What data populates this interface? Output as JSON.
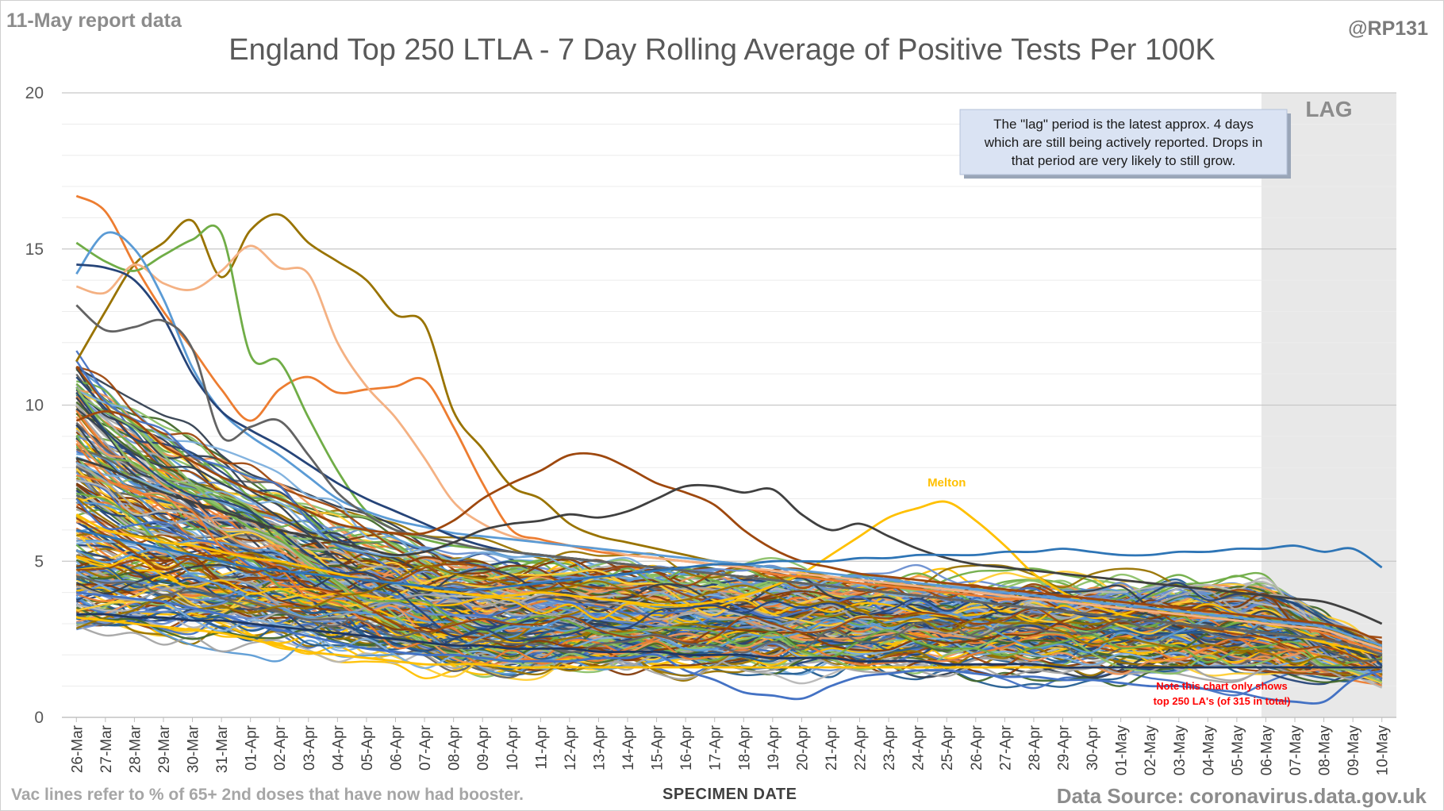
{
  "header": {
    "report_note": "11-May report data",
    "handle": "@RP131",
    "title": "England Top 250 LTLA - 7 Day Rolling Average of Positive Tests Per 100K"
  },
  "footer": {
    "vac_note": "Vac lines refer to % of 65+ 2nd doses that have now had booster.",
    "source": "Data Source: coronavirus.data.gov.uk"
  },
  "chart_data": {
    "type": "line",
    "title": "England Top 250 LTLA - 7 Day Rolling Average of Positive Tests Per 100K",
    "xlabel": "SPECIMEN DATE",
    "ylabel": "",
    "ylim": [
      0,
      20
    ],
    "yticks": [
      "0",
      "5",
      "10",
      "15",
      "20"
    ],
    "grid": true,
    "legend": "none",
    "categories": [
      "26-Mar",
      "27-Mar",
      "28-Mar",
      "29-Mar",
      "30-Mar",
      "31-Mar",
      "01-Apr",
      "02-Apr",
      "03-Apr",
      "04-Apr",
      "05-Apr",
      "06-Apr",
      "07-Apr",
      "08-Apr",
      "09-Apr",
      "10-Apr",
      "11-Apr",
      "12-Apr",
      "13-Apr",
      "14-Apr",
      "15-Apr",
      "16-Apr",
      "17-Apr",
      "18-Apr",
      "19-Apr",
      "20-Apr",
      "21-Apr",
      "22-Apr",
      "23-Apr",
      "24-Apr",
      "25-Apr",
      "26-Apr",
      "27-Apr",
      "28-Apr",
      "29-Apr",
      "30-Apr",
      "01-May",
      "02-May",
      "03-May",
      "04-May",
      "05-May",
      "06-May",
      "07-May",
      "08-May",
      "09-May",
      "10-May"
    ],
    "lag_region": {
      "label": "LAG",
      "start": "06-May",
      "end": "10-May",
      "color": "#e8e8e8"
    },
    "annotations": {
      "lag_note": "The \"lag\" period is the latest approx. 4 days which are still being actively reported. Drops in that period are very likely to still grow.",
      "melton_label": "Melton",
      "coverage_note_1": "Note this chart only shows",
      "coverage_note_2": "top 250 LA's (of 315 in total)"
    },
    "palette": [
      "#4472c4",
      "#ed7d31",
      "#a5a5a5",
      "#ffc000",
      "#5b9bd5",
      "#70ad47",
      "#264478",
      "#9e480e",
      "#636363",
      "#997300",
      "#255e91",
      "#43682b",
      "#698ed0",
      "#f1975a",
      "#b7b7b7",
      "#ffcd33",
      "#7cafdd",
      "#8cc168",
      "#333f50",
      "#843c0c"
    ],
    "series": [
      {
        "name": "Melton",
        "color": "#ffc000",
        "values": [
          6.5,
          6.0,
          5.8,
          5.6,
          5.5,
          5.3,
          5.1,
          5.0,
          4.8,
          4.6,
          4.4,
          4.3,
          4.1,
          4.0,
          3.9,
          3.9,
          4.0,
          3.9,
          3.8,
          3.7,
          3.6,
          3.6,
          3.7,
          3.9,
          4.2,
          4.6,
          5.2,
          5.8,
          6.4,
          6.7,
          6.9,
          6.3,
          5.5,
          4.6,
          4.0,
          3.6,
          3.3,
          3.1,
          3.0,
          2.9,
          2.8,
          2.7,
          2.6,
          2.4,
          2.2,
          2.0
        ]
      },
      {
        "values": [
          16.7,
          16.2,
          14.5,
          13.0,
          11.8,
          10.5,
          9.5,
          10.5,
          10.9,
          10.4,
          10.5,
          10.6,
          10.8,
          9.3,
          7.5,
          6.0,
          5.7,
          5.5,
          5.3,
          5.2,
          5.1,
          5.0,
          4.9,
          4.8,
          4.6,
          4.5,
          4.4,
          4.3,
          4.2,
          4.1,
          4.0,
          3.9,
          3.8,
          3.8,
          3.7,
          3.6,
          3.5,
          3.4,
          3.3,
          3.2,
          3.1,
          3.0,
          2.9,
          2.7,
          2.4,
          2.1
        ],
        "color": "#ed7d31"
      },
      {
        "values": [
          11.4,
          13.0,
          14.5,
          15.2,
          15.9,
          14.1,
          15.6,
          16.1,
          15.2,
          14.6,
          14.0,
          12.9,
          12.6,
          9.8,
          8.6,
          7.4,
          7.0,
          6.2,
          5.8,
          5.6,
          5.4,
          5.2,
          5.0,
          4.9,
          4.8,
          4.7,
          4.5,
          4.4,
          4.3,
          4.2,
          4.1,
          4.0,
          3.9,
          3.8,
          3.7,
          3.6,
          3.5,
          3.4,
          3.3,
          3.2,
          3.1,
          3.0,
          2.9,
          2.8,
          2.6,
          2.3
        ],
        "color": "#997300"
      },
      {
        "values": [
          15.2,
          14.6,
          14.3,
          14.8,
          15.3,
          15.5,
          11.6,
          11.4,
          9.6,
          7.9,
          6.6,
          6.0,
          5.7,
          5.5,
          5.4,
          5.3,
          5.2,
          5.1,
          5.0,
          4.9,
          4.8,
          4.7,
          4.6,
          4.5,
          4.4,
          4.3,
          4.2,
          4.1,
          4.0,
          3.9,
          3.8,
          3.7,
          3.6,
          3.5,
          3.4,
          3.3,
          3.2,
          3.1,
          3.0,
          2.9,
          2.8,
          2.7,
          2.6,
          2.5,
          2.3,
          2.0
        ],
        "color": "#70ad47"
      },
      {
        "values": [
          13.8,
          13.6,
          14.5,
          13.9,
          13.7,
          14.3,
          15.1,
          14.4,
          14.2,
          12.0,
          10.6,
          9.6,
          8.3,
          6.9,
          6.2,
          5.8,
          5.6,
          5.5,
          5.4,
          5.2,
          5.1,
          5.0,
          4.9,
          4.8,
          4.7,
          4.6,
          4.5,
          4.4,
          4.3,
          4.2,
          4.1,
          4.0,
          3.9,
          3.8,
          3.7,
          3.6,
          3.5,
          3.4,
          3.3,
          3.2,
          3.1,
          3.0,
          2.9,
          2.8,
          2.5,
          2.2
        ],
        "color": "#f4b183"
      },
      {
        "values": [
          14.2,
          15.5,
          15.0,
          13.4,
          11.2,
          9.8,
          9.0,
          8.4,
          7.7,
          7.0,
          6.6,
          6.3,
          6.1,
          5.9,
          5.8,
          5.7,
          5.6,
          5.5,
          5.4,
          5.3,
          5.2,
          5.1,
          5.0,
          4.9,
          4.8,
          4.7,
          4.6,
          4.5,
          4.4,
          4.3,
          4.2,
          4.1,
          4.0,
          3.9,
          3.8,
          3.7,
          3.6,
          3.5,
          3.4,
          3.3,
          3.2,
          3.1,
          3.0,
          2.9,
          2.6,
          2.3
        ],
        "color": "#5b9bd5"
      },
      {
        "values": [
          14.5,
          14.4,
          14.0,
          12.8,
          11.0,
          9.8,
          9.2,
          8.7,
          8.1,
          7.5,
          7.0,
          6.6,
          6.2,
          5.8,
          5.5,
          5.3,
          5.2,
          5.1,
          5.0,
          4.9,
          4.8,
          4.7,
          4.6,
          4.5,
          4.4,
          4.3,
          4.2,
          4.1,
          4.0,
          3.9,
          3.8,
          3.7,
          3.6,
          3.5,
          3.4,
          3.3,
          3.2,
          3.1,
          3.0,
          2.9,
          2.8,
          2.7,
          2.6,
          2.5,
          2.3,
          2.0
        ],
        "color": "#264478"
      },
      {
        "values": [
          13.2,
          12.4,
          12.5,
          12.7,
          11.8,
          9.0,
          9.3,
          9.5,
          8.4,
          7.2,
          6.5,
          6.0,
          5.8,
          5.6,
          5.4,
          5.3,
          5.2,
          5.1,
          5.0,
          4.9,
          4.8,
          4.7,
          4.6,
          4.5,
          4.4,
          4.3,
          4.2,
          4.1,
          4.0,
          3.9,
          3.8,
          3.7,
          3.6,
          3.5,
          3.4,
          3.3,
          3.2,
          3.1,
          3.0,
          2.9,
          2.8,
          2.7,
          2.6,
          2.5,
          2.3,
          2.0
        ],
        "color": "#636363"
      },
      {
        "values": [
          9.5,
          9.8,
          9.5,
          8.7,
          8.2,
          7.7,
          7.3,
          7.0,
          6.6,
          6.2,
          6.0,
          5.9,
          5.9,
          6.3,
          7.0,
          7.5,
          7.9,
          8.4,
          8.4,
          8.0,
          7.5,
          7.2,
          6.8,
          6.0,
          5.4,
          5.0,
          4.8,
          4.6,
          4.5,
          4.4,
          4.3,
          4.2,
          4.1,
          4.0,
          3.9,
          3.8,
          3.7,
          3.6,
          3.5,
          3.4,
          3.3,
          3.2,
          3.1,
          3.0,
          2.8,
          2.4
        ],
        "color": "#9e480e"
      },
      {
        "values": [
          8.3,
          8.0,
          7.6,
          7.2,
          6.9,
          6.6,
          6.3,
          6.0,
          5.8,
          5.6,
          5.4,
          5.2,
          5.3,
          5.6,
          6.0,
          6.2,
          6.3,
          6.5,
          6.4,
          6.6,
          7.0,
          7.4,
          7.4,
          7.2,
          7.3,
          6.5,
          6.0,
          6.2,
          5.8,
          5.4,
          5.1,
          4.9,
          4.8,
          4.7,
          4.6,
          4.5,
          4.4,
          4.3,
          4.2,
          4.1,
          4.0,
          3.9,
          3.8,
          3.7,
          3.4,
          3.0
        ],
        "color": "#404040"
      },
      {
        "values": [
          6.0,
          5.8,
          5.6,
          5.4,
          5.2,
          5.0,
          4.8,
          4.7,
          4.6,
          4.5,
          4.4,
          4.3,
          4.2,
          4.1,
          4.1,
          4.2,
          4.3,
          4.4,
          4.5,
          4.6,
          4.7,
          4.8,
          4.9,
          4.9,
          5.0,
          5.0,
          5.0,
          5.1,
          5.1,
          5.2,
          5.2,
          5.2,
          5.3,
          5.3,
          5.4,
          5.3,
          5.2,
          5.2,
          5.3,
          5.3,
          5.4,
          5.4,
          5.5,
          5.3,
          5.4,
          4.8
        ],
        "color": "#2e75b6"
      },
      {
        "values": [
          4.0,
          3.9,
          3.8,
          3.7,
          3.5,
          3.3,
          3.0,
          2.8,
          2.6,
          2.4,
          2.2,
          2.1,
          2.0,
          2.0,
          1.9,
          1.8,
          1.8,
          1.8,
          1.9,
          1.9,
          2.0,
          1.5,
          1.2,
          0.8,
          0.7,
          0.6,
          1.0,
          1.3,
          1.4,
          1.5,
          1.5,
          1.4,
          1.3,
          1.3,
          1.2,
          1.2,
          1.1,
          1.0,
          1.0,
          0.9,
          0.8,
          0.6,
          0.5,
          0.5,
          1.2,
          1.5
        ],
        "color": "#4472c4"
      },
      {
        "values": [
          3.2,
          3.1,
          3.0,
          2.9,
          2.8,
          2.7,
          2.5,
          2.3,
          2.1,
          2.0,
          1.9,
          1.8,
          1.7,
          1.7,
          1.7,
          1.6,
          1.6,
          1.6,
          1.6,
          1.6,
          1.6,
          1.6,
          1.6,
          1.6,
          1.6,
          1.6,
          1.6,
          1.6,
          1.6,
          1.6,
          1.6,
          1.6,
          1.6,
          1.6,
          1.6,
          1.6,
          1.6,
          1.6,
          1.6,
          1.6,
          1.6,
          1.6,
          1.6,
          1.6,
          1.6,
          1.6
        ],
        "color": "#ffc000"
      },
      {
        "values": [
          3.3,
          3.3,
          3.2,
          3.2,
          3.1,
          3.1,
          3.0,
          2.9,
          2.8,
          2.7,
          2.6,
          2.5,
          2.4,
          2.3,
          2.3,
          2.2,
          2.2,
          2.2,
          2.1,
          2.1,
          2.1,
          2.0,
          2.0,
          2.0,
          1.9,
          1.9,
          1.9,
          1.8,
          1.8,
          1.8,
          1.7,
          1.7,
          1.7,
          1.7,
          1.6,
          1.6,
          1.6,
          1.6,
          1.6,
          1.6,
          1.6,
          1.6,
          1.6,
          1.6,
          1.6,
          1.6
        ],
        "color": "#1f3864"
      }
    ]
  }
}
